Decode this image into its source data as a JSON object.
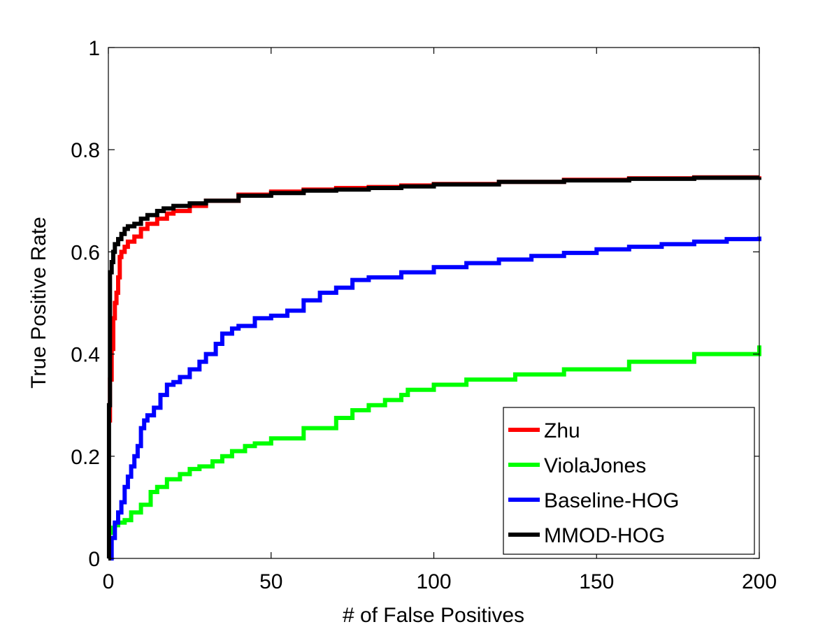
{
  "chart_data": {
    "type": "line",
    "title": "",
    "xlabel": "# of False Positives",
    "ylabel": "True Positive Rate",
    "xlim": [
      0,
      200
    ],
    "ylim": [
      0,
      1
    ],
    "xticks": [
      0,
      50,
      100,
      150,
      200
    ],
    "yticks": [
      0,
      0.2,
      0.4,
      0.6,
      0.8,
      1
    ],
    "xtick_labels": [
      "0",
      "50",
      "100",
      "150",
      "200"
    ],
    "ytick_labels": [
      "0",
      "0.2",
      "0.4",
      "0.6",
      "0.8",
      "1"
    ],
    "grid": false,
    "legend_position": "bottom-right",
    "series": [
      {
        "name": "Zhu",
        "color": "#ff0000",
        "x": [
          0,
          0.5,
          1,
          1.5,
          2,
          2.5,
          3,
          3.5,
          4,
          5,
          6,
          8,
          10,
          12,
          15,
          18,
          20,
          25,
          30,
          40,
          50,
          60,
          70,
          80,
          90,
          100,
          120,
          140,
          160,
          180,
          200
        ],
        "y": [
          0.27,
          0.35,
          0.41,
          0.47,
          0.5,
          0.52,
          0.55,
          0.59,
          0.6,
          0.61,
          0.62,
          0.63,
          0.645,
          0.655,
          0.665,
          0.675,
          0.68,
          0.69,
          0.7,
          0.712,
          0.718,
          0.722,
          0.725,
          0.727,
          0.73,
          0.733,
          0.737,
          0.741,
          0.744,
          0.746,
          0.748
        ]
      },
      {
        "name": "ViolaJones",
        "color": "#00ff00",
        "x": [
          0,
          1,
          2,
          3,
          5,
          7,
          10,
          13,
          15,
          18,
          22,
          25,
          28,
          32,
          35,
          38,
          42,
          45,
          50,
          60,
          70,
          75,
          80,
          85,
          90,
          92,
          100,
          110,
          125,
          140,
          160,
          180,
          200
        ],
        "y": [
          0.05,
          0.06,
          0.065,
          0.07,
          0.075,
          0.09,
          0.105,
          0.13,
          0.14,
          0.155,
          0.165,
          0.175,
          0.18,
          0.19,
          0.2,
          0.21,
          0.22,
          0.225,
          0.235,
          0.255,
          0.275,
          0.29,
          0.3,
          0.31,
          0.32,
          0.33,
          0.34,
          0.35,
          0.36,
          0.37,
          0.385,
          0.4,
          0.417
        ]
      },
      {
        "name": "Baseline-HOG",
        "color": "#0000ff",
        "x": [
          0,
          1,
          2,
          3,
          4,
          5,
          6,
          7,
          8,
          9,
          10,
          11,
          12,
          14,
          16,
          18,
          20,
          22,
          25,
          28,
          30,
          33,
          35,
          38,
          40,
          45,
          50,
          55,
          60,
          65,
          70,
          75,
          80,
          90,
          100,
          110,
          120,
          130,
          140,
          150,
          160,
          170,
          180,
          190,
          200
        ],
        "y": [
          0,
          0.04,
          0.07,
          0.09,
          0.11,
          0.14,
          0.16,
          0.18,
          0.2,
          0.22,
          0.255,
          0.27,
          0.28,
          0.295,
          0.32,
          0.34,
          0.345,
          0.355,
          0.37,
          0.385,
          0.4,
          0.42,
          0.44,
          0.45,
          0.455,
          0.47,
          0.475,
          0.485,
          0.505,
          0.52,
          0.53,
          0.545,
          0.55,
          0.56,
          0.57,
          0.578,
          0.585,
          0.592,
          0.598,
          0.605,
          0.61,
          0.615,
          0.62,
          0.625,
          0.63
        ]
      },
      {
        "name": "MMOD-HOG",
        "color": "#000000",
        "x": [
          0,
          0.2,
          0.5,
          1,
          1.5,
          2,
          3,
          4,
          5,
          6,
          8,
          10,
          12,
          15,
          17,
          20,
          25,
          30,
          40,
          50,
          60,
          70,
          80,
          90,
          100,
          120,
          140,
          160,
          180,
          200
        ],
        "y": [
          0,
          0.3,
          0.56,
          0.58,
          0.6,
          0.615,
          0.625,
          0.635,
          0.645,
          0.65,
          0.655,
          0.665,
          0.672,
          0.68,
          0.685,
          0.69,
          0.695,
          0.7,
          0.71,
          0.715,
          0.72,
          0.722,
          0.725,
          0.728,
          0.732,
          0.737,
          0.74,
          0.743,
          0.745,
          0.746
        ]
      }
    ]
  }
}
